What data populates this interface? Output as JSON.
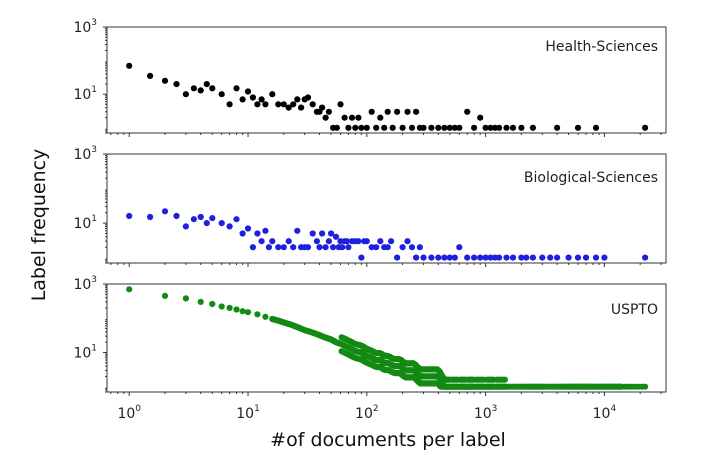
{
  "figure": {
    "xlabel": "#of documents per label",
    "ylabel": "Label frequency",
    "xtick_labels": [
      {
        "base": "10",
        "exp": "0"
      },
      {
        "base": "10",
        "exp": "1"
      },
      {
        "base": "10",
        "exp": "2"
      },
      {
        "base": "10",
        "exp": "3"
      },
      {
        "base": "10",
        "exp": "4"
      }
    ],
    "ytick_labels": [
      {
        "base": "10",
        "exp": "3"
      },
      {
        "base": "10",
        "exp": "1"
      }
    ]
  },
  "chart_data": [
    {
      "type": "scatter",
      "title": "Health-Sciences",
      "xscale": "log",
      "yscale": "log",
      "xlim": [
        0.65,
        33000
      ],
      "ylim": [
        0.7,
        1000
      ],
      "yticks": [
        1000,
        10
      ],
      "color": "#000000",
      "series": [
        {
          "x": [
            1,
            1.5,
            2,
            2.5,
            3,
            3.5,
            4,
            4.5,
            5,
            6,
            7,
            8,
            9,
            10,
            11,
            12,
            13,
            14,
            16,
            18,
            20,
            22,
            24,
            26,
            28,
            30,
            32,
            35,
            38,
            40,
            42,
            45,
            48,
            52,
            56,
            60,
            65,
            70,
            75,
            80,
            85,
            90,
            100,
            110,
            120,
            130,
            140,
            150,
            165,
            180,
            200,
            220,
            240,
            260,
            280,
            300,
            350,
            400,
            450,
            500,
            550,
            600,
            700,
            800,
            900,
            1000,
            1100,
            1200,
            1300,
            1500,
            1700,
            2000,
            2500,
            4000,
            6000,
            8500,
            22000
          ],
          "y": [
            70,
            35,
            25,
            20,
            10,
            15,
            13,
            20,
            15,
            10,
            5,
            15,
            7,
            12,
            8,
            5,
            7,
            5,
            10,
            5,
            5,
            4,
            5,
            7,
            4,
            7,
            8,
            5,
            3,
            3,
            4,
            2,
            3,
            1,
            1,
            5,
            2,
            1,
            2,
            1,
            2,
            1,
            1,
            3,
            1,
            2,
            1,
            3,
            1,
            3,
            1,
            3,
            1,
            3,
            1,
            1,
            1,
            1,
            1,
            1,
            1,
            1,
            3,
            1,
            2,
            1,
            1,
            1,
            1,
            1,
            1,
            1,
            1,
            1,
            1,
            1,
            1
          ]
        }
      ]
    },
    {
      "type": "scatter",
      "title": "Biological-Sciences",
      "xscale": "log",
      "yscale": "log",
      "xlim": [
        0.65,
        33000
      ],
      "ylim": [
        0.7,
        1000
      ],
      "yticks": [
        1000,
        10
      ],
      "color": "#1f1fe0",
      "series": [
        {
          "x": [
            1,
            1.5,
            2,
            2.5,
            3,
            3.5,
            4,
            4.5,
            5,
            6,
            7,
            8,
            9,
            10,
            11,
            12,
            13,
            14,
            15,
            16,
            18,
            20,
            22,
            24,
            26,
            28,
            30,
            32,
            35,
            38,
            40,
            42,
            45,
            48,
            50,
            52,
            55,
            58,
            60,
            62,
            65,
            68,
            70,
            75,
            80,
            85,
            90,
            95,
            100,
            110,
            120,
            130,
            140,
            150,
            160,
            180,
            200,
            220,
            240,
            260,
            280,
            300,
            350,
            400,
            450,
            500,
            550,
            600,
            700,
            800,
            900,
            1000,
            1100,
            1200,
            1300,
            1500,
            1700,
            2000,
            2200,
            2500,
            3000,
            3500,
            4000,
            5000,
            6000,
            7000,
            8500,
            10000,
            22000
          ],
          "y": [
            16,
            15,
            22,
            16,
            8,
            13,
            15,
            10,
            14,
            10,
            8,
            13,
            5,
            7,
            2,
            5,
            3,
            6,
            2,
            3,
            2,
            2,
            3,
            2,
            6,
            2,
            2,
            2,
            5,
            3,
            2,
            5,
            2,
            3,
            5,
            2,
            4,
            2,
            3,
            2,
            3,
            3,
            2,
            3,
            3,
            3,
            1,
            3,
            3,
            2,
            2,
            3,
            2,
            2,
            3,
            1,
            2,
            3,
            2,
            1,
            2,
            1,
            1,
            1,
            1,
            1,
            1,
            2,
            1,
            1,
            1,
            1,
            1,
            1,
            1,
            1,
            1,
            1,
            1,
            1,
            1,
            1,
            1,
            1,
            1,
            1,
            1,
            1,
            1
          ]
        }
      ]
    },
    {
      "type": "scatter",
      "title": "USPTO",
      "xscale": "log",
      "yscale": "log",
      "xlim": [
        0.65,
        33000
      ],
      "ylim": [
        0.7,
        1000
      ],
      "yticks": [
        1000,
        10
      ],
      "color": "#138a13",
      "series": [
        {
          "x": [
            1,
            2,
            3,
            4,
            5,
            6,
            7,
            8,
            9,
            10,
            12,
            14,
            16,
            18,
            20,
            23,
            26,
            30,
            35,
            40,
            45,
            50,
            55,
            60,
            70,
            80,
            90,
            100,
            110,
            120,
            130,
            140,
            150,
            170,
            190,
            210,
            230,
            250,
            280,
            300,
            350,
            400,
            450,
            500,
            600,
            700,
            800,
            1000,
            1200,
            1500,
            2000,
            2500,
            3000,
            4000,
            5000,
            6000,
            7000,
            8000,
            10000,
            12000,
            14000,
            22000
          ],
          "y": [
            700,
            450,
            380,
            300,
            260,
            220,
            200,
            180,
            160,
            150,
            130,
            110,
            95,
            85,
            75,
            65,
            55,
            45,
            38,
            32,
            27,
            24,
            20,
            18,
            14,
            11,
            10,
            8,
            7,
            6,
            6,
            5,
            5,
            4,
            4,
            3,
            3,
            3,
            2,
            2,
            2,
            2,
            1,
            1,
            1,
            1,
            1,
            1,
            1,
            1,
            1,
            1,
            1,
            1,
            1,
            1,
            1,
            1,
            1,
            1,
            1,
            1
          ]
        }
      ]
    }
  ]
}
